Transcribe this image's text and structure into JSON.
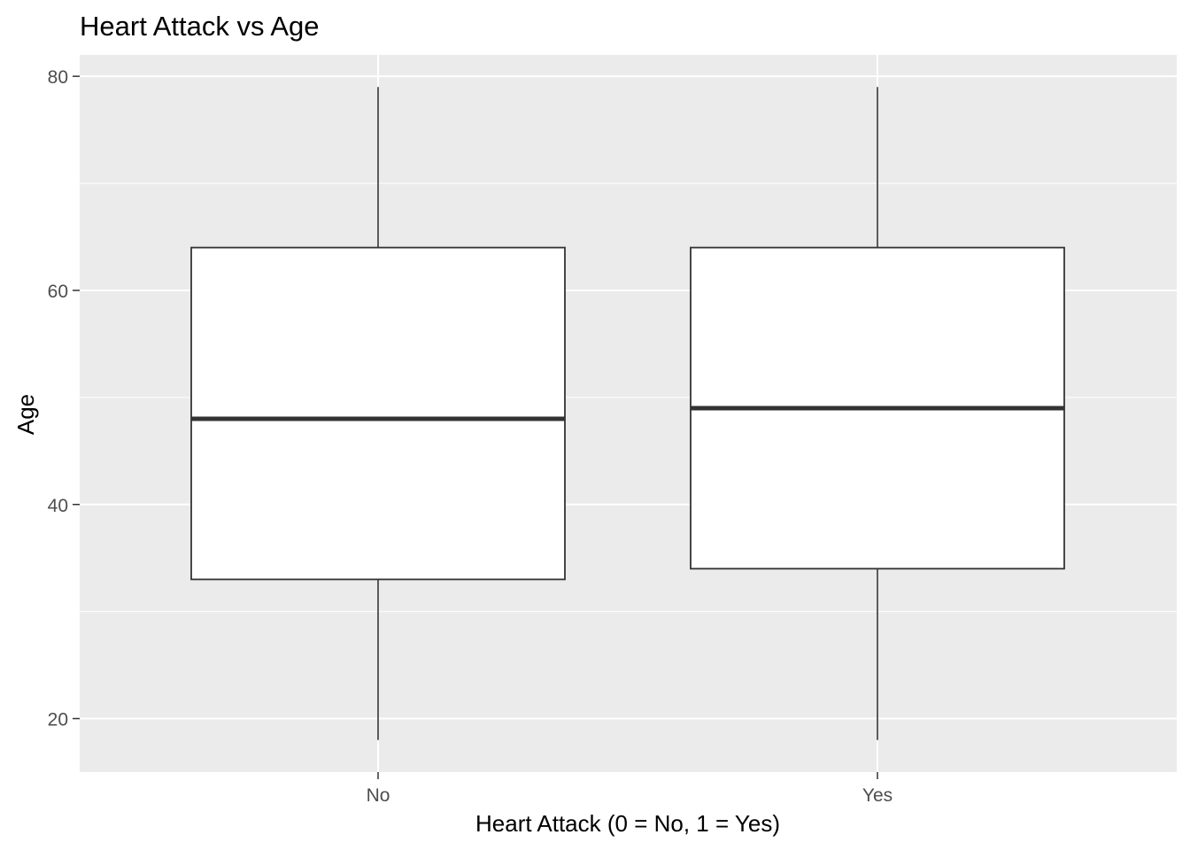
{
  "chart_data": {
    "type": "boxplot",
    "title": "Heart Attack vs Age",
    "xlabel": "Heart Attack (0 = No, 1 = Yes)",
    "ylabel": "Age",
    "categories": [
      "No",
      "Yes"
    ],
    "boxes": [
      {
        "category": "No",
        "min": 18,
        "q1": 33,
        "median": 48,
        "q3": 64,
        "max": 79
      },
      {
        "category": "Yes",
        "min": 18,
        "q1": 34,
        "median": 49,
        "q3": 64,
        "max": 79
      }
    ],
    "y_ticks": [
      20,
      40,
      60,
      80
    ],
    "ylim": [
      15,
      82
    ],
    "grid": true,
    "colors": {
      "panel": "#ebebeb",
      "grid": "#ffffff",
      "box_fill": "#ffffff",
      "box_stroke": "#333333",
      "tick_text": "#4d4d4d"
    }
  }
}
